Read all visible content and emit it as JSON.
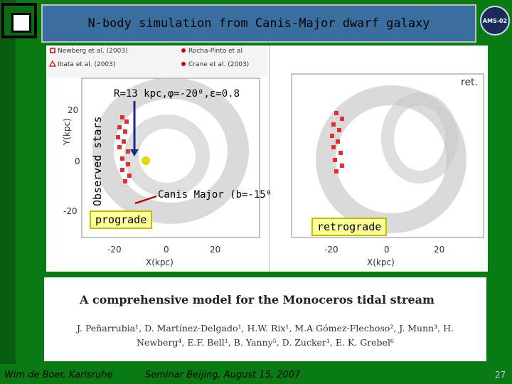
{
  "slide": {
    "title": "N-body simulation from Canis-Major dwarf galaxy",
    "badge_text": "AMS-02"
  },
  "legend": {
    "items": [
      {
        "marker": "square",
        "color": "#d00000",
        "label": "Newberg et al. (2003)"
      },
      {
        "marker": "dot",
        "color": "#d00000",
        "label": "Rocha-Pinto et al"
      },
      {
        "marker": "triangle",
        "color": "#d00000",
        "label": "Ibata et al. (2003)"
      },
      {
        "marker": "dot",
        "color": "#d00000",
        "label": "Crane et al. (2003)"
      }
    ]
  },
  "left_plot": {
    "params_text": "R=13 kpc,φ=-20⁰,ε=0.8",
    "observed_label": "Observed stars",
    "canis_label": "Canis Major (b=-15⁰)",
    "prograde_label": "prograde",
    "ylabel": "Y(kpc)",
    "xlabel": "X(kpc)",
    "yticks": [
      "20",
      "0",
      "-20"
    ],
    "xticks": [
      "-20",
      "0",
      "20"
    ]
  },
  "right_plot": {
    "ret_label": "ret.",
    "retrograde_label": "retrograde",
    "xlabel": "X(kpc)",
    "xticks": [
      "-20",
      "0",
      "20"
    ]
  },
  "paper": {
    "title": "A comprehensive model for the Monoceros tidal stream",
    "authors_line1": "J. Peñarrubia¹, D. Martínez-Delgado¹, H.W. Rix¹, M.A Gómez-Flechoso², J. Munn³, H.",
    "authors_line2": "Newberg⁴, E.F. Bell¹, B. Yanny⁵, D. Zucker¹, E. K. Grebel⁶"
  },
  "footer": {
    "left": "Wim de Boer, Karlsruhe",
    "center": "Seminar Beijing, August 15, 2007",
    "page": "27"
  }
}
